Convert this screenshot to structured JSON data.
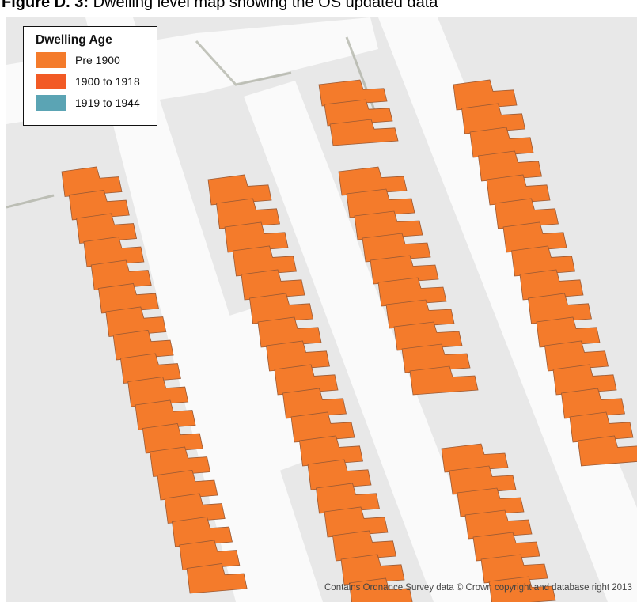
{
  "caption": {
    "prefix": "Figure D. 3:",
    "text": " Dwelling level map showing the OS updated data"
  },
  "legend": {
    "title": "Dwelling Age",
    "items": [
      {
        "label": "Pre 1900",
        "color": "#f47b2b"
      },
      {
        "label": "1900 to 1918",
        "color": "#f25a25"
      },
      {
        "label": "1919 to 1944",
        "color": "#5ba4b4"
      }
    ]
  },
  "attribution": "Contains Ordnance Survey data © Crown copyright and database right 2013",
  "colors": {
    "dwelling": "#f47b2b",
    "dwelling_stroke": "#9b5a34",
    "road": "#fafafa",
    "background": "#e8e8e8"
  }
}
